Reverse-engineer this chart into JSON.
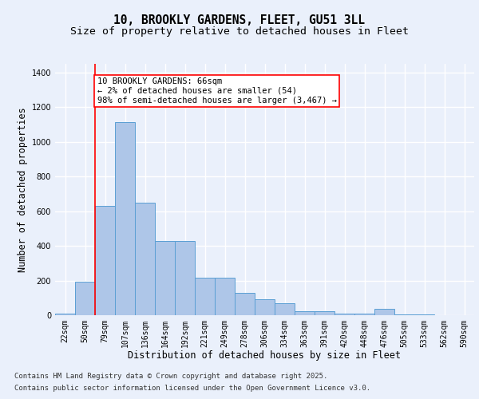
{
  "title_line1": "10, BROOKLY GARDENS, FLEET, GU51 3LL",
  "title_line2": "Size of property relative to detached houses in Fleet",
  "xlabel": "Distribution of detached houses by size in Fleet",
  "ylabel": "Number of detached properties",
  "categories": [
    "22sqm",
    "50sqm",
    "79sqm",
    "107sqm",
    "136sqm",
    "164sqm",
    "192sqm",
    "221sqm",
    "249sqm",
    "278sqm",
    "306sqm",
    "334sqm",
    "363sqm",
    "391sqm",
    "420sqm",
    "448sqm",
    "476sqm",
    "505sqm",
    "533sqm",
    "562sqm",
    "590sqm"
  ],
  "values": [
    10,
    195,
    630,
    1115,
    650,
    430,
    430,
    215,
    215,
    130,
    90,
    70,
    25,
    25,
    10,
    10,
    35,
    5,
    3,
    2,
    1
  ],
  "bar_color": "#aec6e8",
  "bar_edge_color": "#5a9fd4",
  "annotation_line1": "10 BROOKLY GARDENS: 66sqm",
  "annotation_line2": "← 2% of detached houses are smaller (54)",
  "annotation_line3": "98% of semi-detached houses are larger (3,467) →",
  "annotation_box_facecolor": "white",
  "annotation_box_edgecolor": "red",
  "vline_x": 1.5,
  "vline_color": "red",
  "ylim": [
    0,
    1450
  ],
  "yticks": [
    0,
    200,
    400,
    600,
    800,
    1000,
    1200,
    1400
  ],
  "bg_color": "#eaf0fb",
  "plot_bg_color": "#eaf0fb",
  "grid_color": "white",
  "footer_line1": "Contains HM Land Registry data © Crown copyright and database right 2025.",
  "footer_line2": "Contains public sector information licensed under the Open Government Licence v3.0.",
  "title_fontsize": 10.5,
  "subtitle_fontsize": 9.5,
  "axis_label_fontsize": 8.5,
  "tick_fontsize": 7,
  "annotation_fontsize": 7.5,
  "footer_fontsize": 6.5
}
